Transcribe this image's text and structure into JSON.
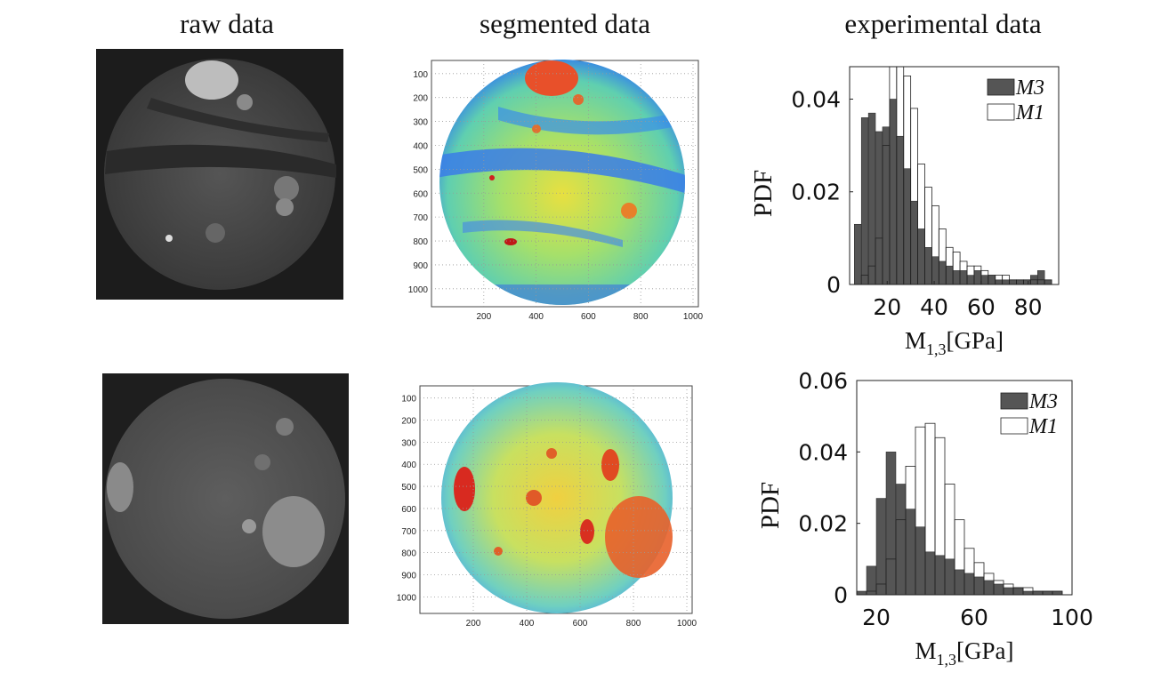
{
  "column_titles": [
    "raw data",
    "segmented data",
    "experimental data"
  ],
  "segmented_panels": [
    {
      "xticks": [
        200,
        400,
        600,
        800,
        1000
      ],
      "yticks": [
        100,
        200,
        300,
        400,
        500,
        600,
        700,
        800,
        900,
        1000
      ]
    },
    {
      "xticks": [
        200,
        400,
        600,
        800,
        1000
      ],
      "yticks": [
        100,
        200,
        300,
        400,
        500,
        600,
        700,
        800,
        900,
        1000
      ]
    }
  ],
  "chart_data": [
    {
      "type": "histogram",
      "ylabel": "PDF",
      "xlabel": [
        "M",
        "1,3",
        "[GPa]"
      ],
      "legend": "upper right",
      "bins": [
        6,
        9,
        12,
        15,
        18,
        21,
        24,
        27,
        30,
        33,
        36,
        39,
        42,
        45,
        48,
        51,
        54,
        57,
        60,
        63,
        66,
        69,
        72,
        75,
        78,
        81,
        84,
        87,
        90,
        93
      ],
      "series": [
        {
          "name": "M3",
          "color": "#555555",
          "values": [
            0.013,
            0.036,
            0.037,
            0.033,
            0.034,
            0.04,
            0.032,
            0.025,
            0.018,
            0.012,
            0.008,
            0.006,
            0.005,
            0.004,
            0.003,
            0.003,
            0.002,
            0.003,
            0.002,
            0.002,
            0.001,
            0.001,
            0.001,
            0.001,
            0.001,
            0.002,
            0.003,
            0.001,
            0
          ]
        },
        {
          "name": "M1",
          "color": "#ffffff",
          "values": [
            0,
            0.002,
            0.004,
            0.01,
            0.03,
            0.047,
            0.047,
            0.045,
            0.038,
            0.026,
            0.021,
            0.017,
            0.012,
            0.008,
            0.007,
            0.005,
            0.004,
            0.004,
            0.003,
            0.002,
            0.002,
            0.002,
            0.001,
            0.001,
            0.001,
            0.001,
            0.001,
            0.001,
            0
          ]
        }
      ],
      "xlim": [
        4,
        93
      ],
      "ylim": [
        0,
        0.047
      ],
      "xticks": [
        20,
        40,
        60,
        80
      ],
      "yticks": [
        0,
        0.02,
        0.04
      ]
    },
    {
      "type": "histogram",
      "ylabel": "PDF",
      "xlabel": [
        "M",
        "1,3",
        "[GPa]"
      ],
      "legend": "upper right",
      "bins": [
        12,
        16,
        20,
        24,
        28,
        32,
        36,
        40,
        44,
        48,
        52,
        56,
        60,
        64,
        68,
        72,
        76,
        80,
        84,
        88,
        92,
        96,
        100
      ],
      "series": [
        {
          "name": "M3",
          "color": "#555555",
          "values": [
            0.001,
            0.008,
            0.027,
            0.04,
            0.031,
            0.024,
            0.019,
            0.012,
            0.011,
            0.01,
            0.007,
            0.006,
            0.005,
            0.004,
            0.003,
            0.002,
            0.002,
            0.001,
            0.001,
            0.001,
            0.001,
            0
          ]
        },
        {
          "name": "M1",
          "color": "#ffffff",
          "values": [
            0,
            0.001,
            0.003,
            0.01,
            0.021,
            0.036,
            0.047,
            0.048,
            0.044,
            0.031,
            0.021,
            0.013,
            0.009,
            0.006,
            0.004,
            0.003,
            0.002,
            0.002,
            0.001,
            0.001,
            0.001,
            0
          ]
        }
      ],
      "xlim": [
        12,
        100
      ],
      "ylim": [
        0,
        0.06
      ],
      "xticks": [
        20,
        60,
        100
      ],
      "yticks": [
        0,
        0.02,
        0.04,
        0.06
      ]
    }
  ]
}
